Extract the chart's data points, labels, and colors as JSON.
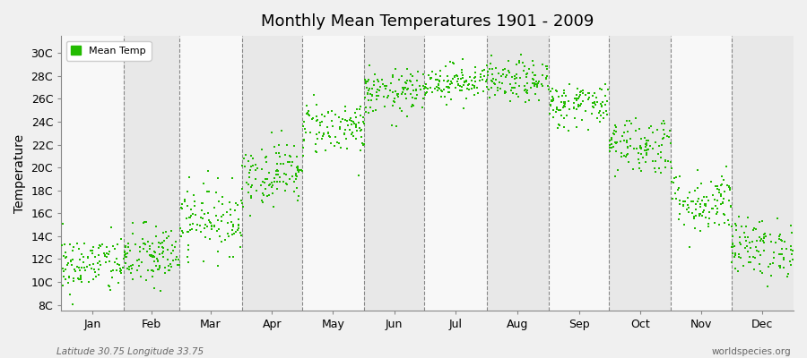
{
  "title": "Monthly Mean Temperatures 1901 - 2009",
  "ylabel": "Temperature",
  "subtitle_left": "Latitude 30.75 Longitude 33.75",
  "subtitle_right": "worldspecies.org",
  "ytick_labels": [
    "8C",
    "10C",
    "12C",
    "14C",
    "16C",
    "18C",
    "20C",
    "22C",
    "24C",
    "26C",
    "28C",
    "30C"
  ],
  "ytick_values": [
    8,
    10,
    12,
    14,
    16,
    18,
    20,
    22,
    24,
    26,
    28,
    30
  ],
  "ylim": [
    7.5,
    31.5
  ],
  "month_names": [
    "Jan",
    "Feb",
    "Mar",
    "Apr",
    "May",
    "Jun",
    "Jul",
    "Aug",
    "Sep",
    "Oct",
    "Nov",
    "Dec"
  ],
  "dot_color": "#22bb00",
  "legend_label": "Mean Temp",
  "background_color": "#f0f0f0",
  "band_color_light": "#e8e8e8",
  "band_color_dark": "#f8f8f8",
  "monthly_mean": [
    11.5,
    12.2,
    15.5,
    19.5,
    23.5,
    26.5,
    27.5,
    27.5,
    25.5,
    22.0,
    17.0,
    13.0
  ],
  "monthly_std": [
    1.3,
    1.4,
    1.5,
    1.4,
    1.2,
    1.0,
    0.8,
    0.9,
    1.0,
    1.3,
    1.4,
    1.3
  ],
  "n_years": 109,
  "seed": 42,
  "month_days": [
    31,
    28,
    31,
    30,
    31,
    30,
    31,
    31,
    30,
    31,
    30,
    31
  ]
}
